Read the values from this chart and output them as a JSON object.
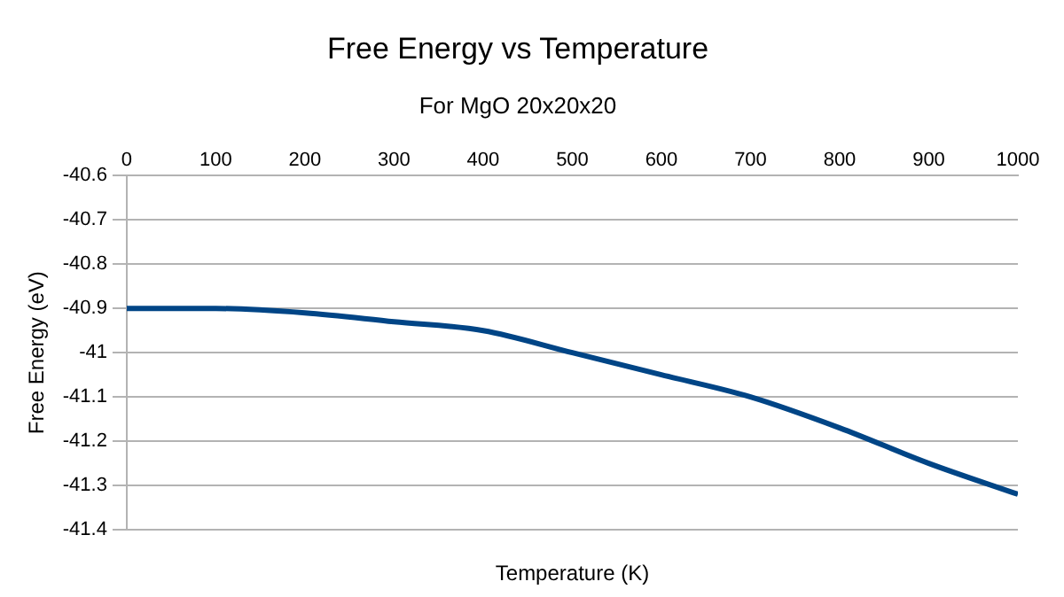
{
  "chart_data": {
    "type": "line",
    "title": "Free Energy vs Temperature",
    "subtitle": "For MgO 20x20x20",
    "xlabel": "Temperature (K)",
    "ylabel": "Free Energy (eV)",
    "x": [
      0,
      100,
      200,
      300,
      400,
      500,
      600,
      700,
      800,
      900,
      1000
    ],
    "series": [
      {
        "color": "#004586",
        "values": [
          -40.9,
          -40.9,
          -40.91,
          -40.93,
          -40.95,
          -41.0,
          -41.05,
          -41.1,
          -41.17,
          -41.25,
          -41.32
        ]
      }
    ],
    "xlim": [
      0,
      1000
    ],
    "xticks": [
      0,
      100,
      200,
      300,
      400,
      500,
      600,
      700,
      800,
      900,
      1000
    ],
    "ylim": [
      -41.4,
      -40.6
    ],
    "yticks": [
      -41.4,
      -41.3,
      -41.2,
      -41.1,
      -41,
      -40.9,
      -40.8,
      -40.7,
      -40.6
    ],
    "grid": "y",
    "legend": false,
    "marker": "none",
    "line_style": "solid"
  }
}
